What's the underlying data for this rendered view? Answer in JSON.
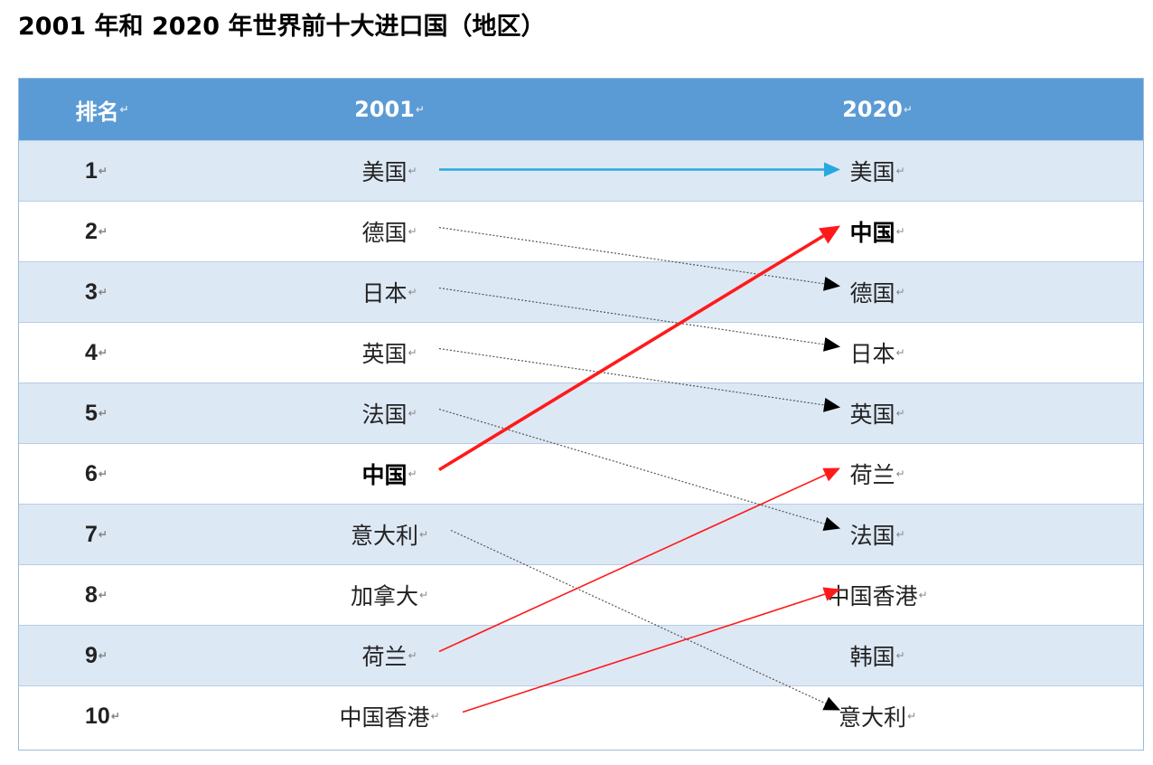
{
  "title": "2001 年和 2020 年世界前十大进口国（地区）",
  "columns": {
    "rank": "排名",
    "y2001": "2001",
    "y2020": "2020"
  },
  "paragraph_mark": "↵",
  "rows": [
    {
      "rank": "1",
      "y2001": "美国",
      "y2020": "美国"
    },
    {
      "rank": "2",
      "y2001": "德国",
      "y2020": "中国"
    },
    {
      "rank": "3",
      "y2001": "日本",
      "y2020": "德国"
    },
    {
      "rank": "4",
      "y2001": "英国",
      "y2020": "日本"
    },
    {
      "rank": "5",
      "y2001": "法国",
      "y2020": "英国"
    },
    {
      "rank": "6",
      "y2001": "中国",
      "y2020": "荷兰"
    },
    {
      "rank": "7",
      "y2001": "意大利",
      "y2020": "法国"
    },
    {
      "rank": "8",
      "y2001": "加拿大",
      "y2020": "中国香港"
    },
    {
      "rank": "9",
      "y2001": "荷兰",
      "y2020": "韩国"
    },
    {
      "rank": "10",
      "y2001": "中国香港",
      "y2020": "意大利"
    }
  ],
  "arrows": [
    {
      "from_rank": 1,
      "to_rank": 1,
      "color": "#29a8e0",
      "style": "solid-thick"
    },
    {
      "from_rank": 2,
      "to_rank": 3,
      "color": "#555555",
      "style": "dotted"
    },
    {
      "from_rank": 3,
      "to_rank": 4,
      "color": "#555555",
      "style": "dotted"
    },
    {
      "from_rank": 4,
      "to_rank": 5,
      "color": "#555555",
      "style": "dotted"
    },
    {
      "from_rank": 5,
      "to_rank": 7,
      "color": "#555555",
      "style": "dotted"
    },
    {
      "from_rank": 6,
      "to_rank": 2,
      "color": "#ff1a1a",
      "style": "solid-bold"
    },
    {
      "from_rank": 7,
      "to_rank": 10,
      "color": "#555555",
      "style": "dotted"
    },
    {
      "from_rank": 9,
      "to_rank": 6,
      "color": "#ff1a1a",
      "style": "solid-thin"
    },
    {
      "from_rank": 10,
      "to_rank": 8,
      "color": "#ff1a1a",
      "style": "solid-thin"
    }
  ],
  "highlight": "中国"
}
